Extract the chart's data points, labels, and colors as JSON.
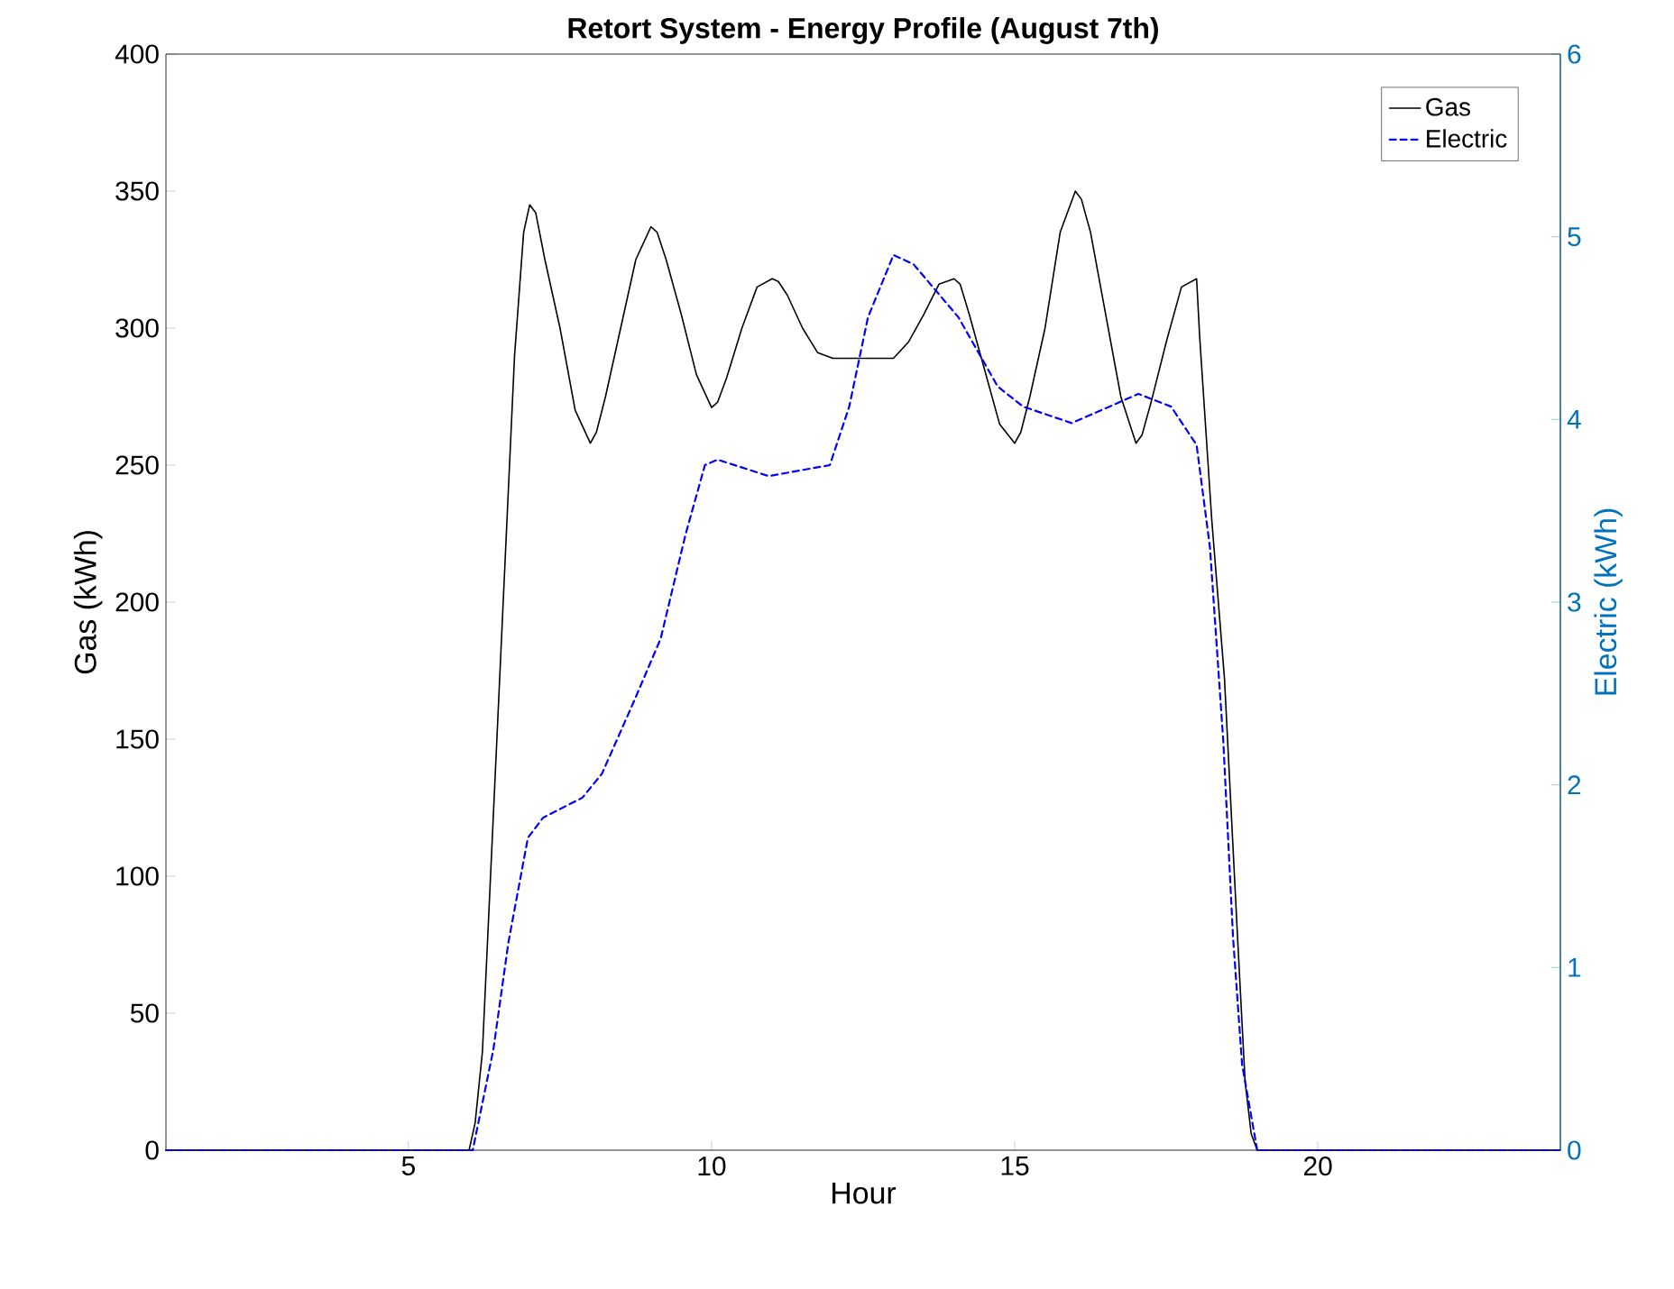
{
  "chart_data": {
    "type": "line",
    "title": "Retort System - Energy Profile (August 7th)",
    "xlabel": "Hour",
    "ylabel": "Gas (kWh)",
    "y2label": "Electric (kWh)",
    "xlim": [
      1,
      24
    ],
    "xticks": [
      5,
      10,
      15,
      20
    ],
    "ylim": [
      0,
      400
    ],
    "yticks": [
      0,
      50,
      100,
      150,
      200,
      250,
      300,
      350,
      400
    ],
    "y2lim": [
      0,
      6
    ],
    "y2ticks": [
      0,
      1,
      2,
      3,
      4,
      5,
      6
    ],
    "legend": "top right",
    "marker": "none",
    "series": [
      {
        "name": "Gas",
        "color": "#000000",
        "line_style": "solid",
        "x": [
          1,
          6,
          6.1,
          6.22,
          6.5,
          6.75,
          6.9,
          7,
          7.1,
          7.25,
          7.5,
          7.75,
          8,
          8.1,
          8.25,
          8.5,
          8.75,
          9,
          9.1,
          9.25,
          9.5,
          9.75,
          10,
          10.1,
          10.25,
          10.5,
          10.75,
          11,
          11.1,
          11.25,
          11.5,
          11.75,
          12,
          13,
          13.25,
          13.5,
          13.75,
          14,
          14.1,
          14.25,
          14.5,
          14.75,
          15,
          15.1,
          15.25,
          15.5,
          15.75,
          16,
          16.1,
          16.25,
          16.5,
          16.75,
          17,
          17.1,
          17.25,
          17.5,
          17.75,
          18,
          18.05,
          18.25,
          18.46,
          18.67,
          18.8,
          18.9,
          19,
          24
        ],
        "values": [
          0,
          0,
          10,
          36,
          170,
          290,
          335,
          345,
          342,
          325,
          300,
          270,
          258,
          262,
          275,
          300,
          325,
          337,
          335,
          325,
          305,
          283,
          271,
          273,
          282,
          300,
          315,
          318,
          317,
          312,
          300,
          291,
          289,
          289,
          295,
          305,
          316,
          318,
          316,
          305,
          285,
          265,
          258,
          262,
          275,
          300,
          335,
          350,
          347,
          335,
          305,
          275,
          258,
          261,
          273,
          295,
          315,
          318,
          297,
          230,
          172,
          80,
          25,
          6,
          0,
          0
        ]
      },
      {
        "name": "Electric",
        "color": "#0000ff",
        "line_style": "dashed",
        "axis": "y2",
        "x": [
          1,
          6.06,
          6.4,
          6.65,
          6.97,
          7.22,
          7.87,
          8.19,
          8.71,
          9.16,
          9.57,
          9.89,
          10.1,
          10.94,
          11.95,
          12.27,
          12.58,
          13,
          13.33,
          14.07,
          14.72,
          15.14,
          15.94,
          17.04,
          17.58,
          18,
          18.22,
          18.44,
          18.6,
          18.75,
          19,
          24
        ],
        "values": [
          0,
          0,
          0.55,
          1.14,
          1.71,
          1.82,
          1.93,
          2.06,
          2.45,
          2.8,
          3.37,
          3.75,
          3.78,
          3.69,
          3.75,
          4.07,
          4.56,
          4.9,
          4.85,
          4.56,
          4.18,
          4.07,
          3.98,
          4.14,
          4.07,
          3.86,
          3.3,
          2.24,
          1.17,
          0.47,
          0,
          0
        ]
      }
    ]
  }
}
